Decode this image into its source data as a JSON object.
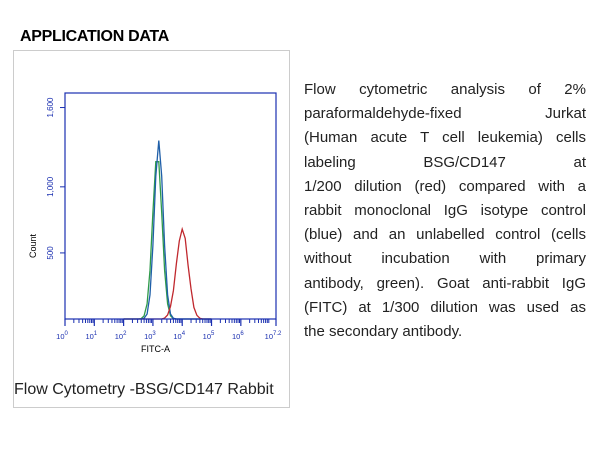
{
  "header": {
    "title": "APPLICATION DATA"
  },
  "chart_data": {
    "type": "line",
    "xlabel": "FITC-A",
    "ylabel": "Count",
    "xtick_base": "10",
    "x": [
      2.0,
      2.1,
      2.2,
      2.3,
      2.4,
      2.5,
      2.6,
      2.7,
      2.8,
      2.9,
      3.0,
      3.1,
      3.2,
      3.3,
      3.4,
      3.5,
      3.6,
      3.7,
      3.8,
      3.9,
      4.0,
      4.1,
      4.2,
      4.3,
      4.4,
      4.5,
      4.6,
      4.7,
      4.8,
      4.9,
      5.0
    ],
    "series": [
      {
        "name": "unlabelled",
        "color": "#2e9a4a",
        "values": [
          0,
          0,
          0,
          0,
          0,
          0,
          3,
          24,
          115,
          369,
          805,
          1190,
          1190,
          805,
          369,
          115,
          24,
          3,
          0,
          0,
          0,
          0,
          0,
          0,
          0,
          0,
          0,
          0,
          0,
          0,
          0
        ]
      },
      {
        "name": "isotype",
        "color": "#1f5fa8",
        "values": [
          0,
          0,
          0,
          0,
          0,
          0,
          0,
          5,
          38,
          183,
          555,
          1081,
          1350,
          1081,
          555,
          183,
          38,
          5,
          0,
          0,
          0,
          0,
          0,
          0,
          0,
          0,
          0,
          0,
          0,
          0,
          0
        ]
      },
      {
        "name": "BSG/CD147",
        "color": "#c0282e",
        "values": [
          0,
          0,
          0,
          0,
          0,
          0,
          0,
          0,
          0,
          0,
          0,
          0,
          0,
          0,
          7,
          30,
          95,
          215,
          420,
          590,
          680,
          610,
          405,
          230,
          88,
          28,
          6,
          0,
          0,
          0,
          0
        ]
      }
    ],
    "xlim": [
      0,
      7.2
    ],
    "xticks": [
      0,
      1,
      2,
      3,
      4,
      5,
      6,
      7.2
    ],
    "ylim": [
      0,
      1710
    ],
    "yticks": [
      {
        "value": 500,
        "label": "500"
      },
      {
        "value": 1000,
        "label": "1,000"
      },
      {
        "value": 1600,
        "label": "1,600"
      }
    ],
    "axis_color": "#1a2fb0"
  },
  "description": {
    "lines": [
      "Flow cytometric analysis of 2%",
      "paraformaldehyde-fixed Jurkat",
      "(Human acute T cell leukemia) cells",
      "labeling BSG/CD147 at",
      "1/200 dilution (red) compared with a",
      "rabbit monoclonal IgG isotype control",
      "(blue) and an unlabelled control (cells",
      "without incubation with primary",
      "antibody, green). Goat anti-rabbit IgG",
      "(FITC) at 1/300 dilution was used as",
      "the secondary antibody."
    ]
  },
  "caption": "Flow Cytometry -BSG/CD147 Rabbit"
}
